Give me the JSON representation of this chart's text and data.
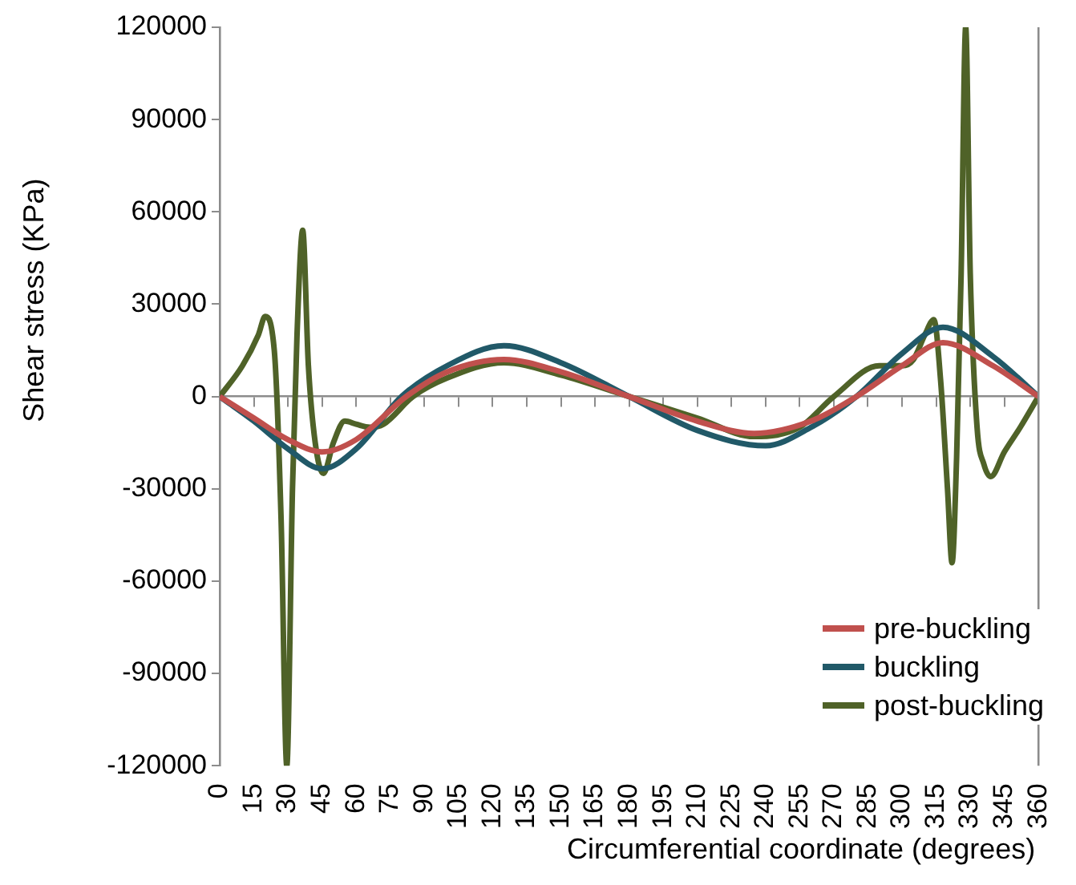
{
  "chart_data": {
    "type": "line",
    "xlabel": "Circumferential coordinate (degrees)",
    "ylabel": "Shear stress (KPa)",
    "xlim": [
      0,
      360
    ],
    "xticks": [
      0,
      15,
      30,
      45,
      60,
      75,
      90,
      105,
      120,
      135,
      150,
      165,
      180,
      195,
      210,
      225,
      240,
      255,
      270,
      285,
      300,
      315,
      330,
      345,
      360
    ],
    "ylim": [
      -120000,
      120000
    ],
    "yticks": [
      -120000,
      -90000,
      -60000,
      -30000,
      0,
      30000,
      60000,
      90000,
      120000
    ],
    "legend": "bottom right",
    "marker": "none",
    "line_style": "solid",
    "series": [
      {
        "name": "pre-buckling",
        "color": "#c0504d",
        "x": [
          0,
          15,
          30,
          45,
          60,
          82,
          100,
          125,
          150,
          180,
          210,
          235,
          260,
          280,
          300,
          318,
          340,
          360
        ],
        "values": [
          0,
          -7000,
          -14000,
          -18000,
          -14000,
          0,
          8000,
          12000,
          8000,
          0,
          -8000,
          -12000,
          -8000,
          0,
          10000,
          17500,
          10000,
          0
        ]
      },
      {
        "name": "buckling",
        "color": "#215968",
        "x": [
          0,
          15,
          30,
          45,
          60,
          80,
          100,
          125,
          150,
          180,
          210,
          240,
          260,
          280,
          300,
          318,
          340,
          360
        ],
        "values": [
          0,
          -8000,
          -17000,
          -23500,
          -17000,
          0,
          10000,
          16500,
          11000,
          0,
          -11000,
          -16000,
          -10000,
          0,
          14000,
          22500,
          13000,
          0
        ]
      },
      {
        "name": "post-buckling",
        "color": "#4f6228",
        "x": [
          0,
          10,
          17,
          20,
          24,
          27,
          29.5,
          32,
          34,
          36.5,
          39,
          42,
          45.6,
          50,
          55,
          60,
          66,
          72,
          85,
          100,
          125,
          150,
          180,
          210,
          235,
          255,
          270,
          290,
          300,
          305,
          310,
          314,
          317,
          320,
          322,
          324,
          326,
          328,
          330,
          333,
          336,
          339,
          345,
          352,
          360
        ],
        "values": [
          0,
          10000,
          20000,
          26000,
          15000,
          -40000,
          -120000,
          -30000,
          20000,
          54000,
          10000,
          -15000,
          -25000,
          -15000,
          -8000,
          -9000,
          -10000,
          -9000,
          0,
          6000,
          11000,
          7000,
          0,
          -7000,
          -13000,
          -10000,
          0,
          10000,
          10000,
          12000,
          20000,
          25000,
          5000,
          -30000,
          -54000,
          -20000,
          40000,
          120000,
          40000,
          -10000,
          -22000,
          -26000,
          -18000,
          -10000,
          0
        ]
      }
    ]
  }
}
